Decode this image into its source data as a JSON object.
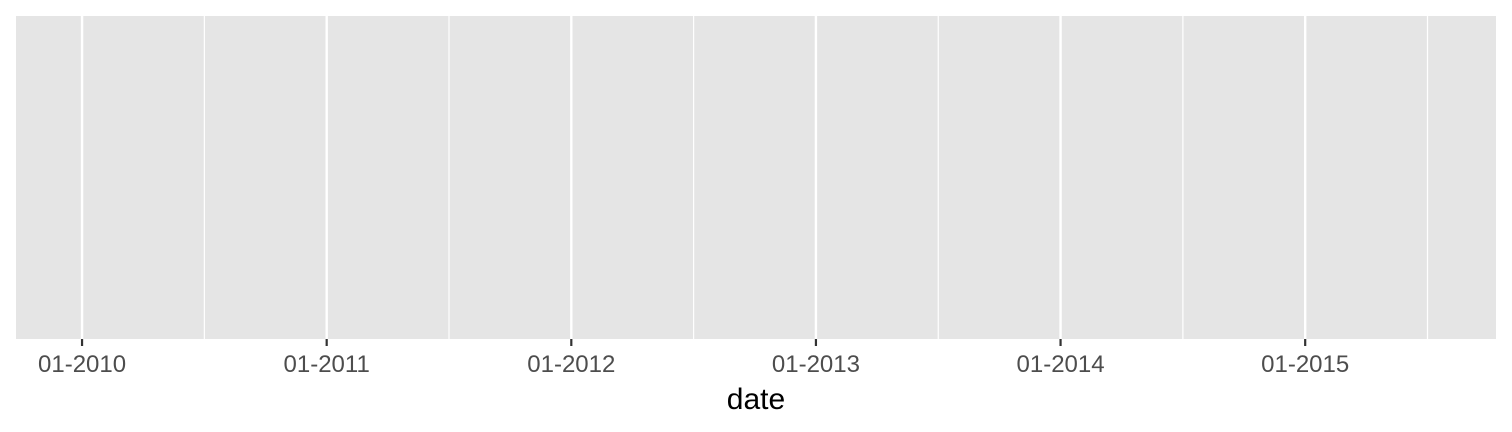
{
  "chart_data": {
    "type": "line",
    "title": "",
    "xlabel": "date",
    "ylabel": "",
    "x_axis_type": "date",
    "xlim": [
      2009.73,
      2015.78
    ],
    "x_ticks": [
      {
        "value": 2010,
        "label": "01-2010"
      },
      {
        "value": 2011,
        "label": "01-2011"
      },
      {
        "value": 2012,
        "label": "01-2012"
      },
      {
        "value": 2013,
        "label": "01-2013"
      },
      {
        "value": 2014,
        "label": "01-2014"
      },
      {
        "value": 2015,
        "label": "01-2015"
      }
    ],
    "x_minor_ticks": [
      2010.5,
      2011.5,
      2012.5,
      2013.5,
      2014.5,
      2015.5
    ],
    "series": [],
    "grid": true,
    "y_axis_visible": false,
    "colors": {
      "panel_background": "#e5e5e5",
      "grid_line": "#ffffff",
      "tick_mark": "#333333",
      "tick_label": "#4d4d4d",
      "axis_title": "#000000"
    }
  }
}
